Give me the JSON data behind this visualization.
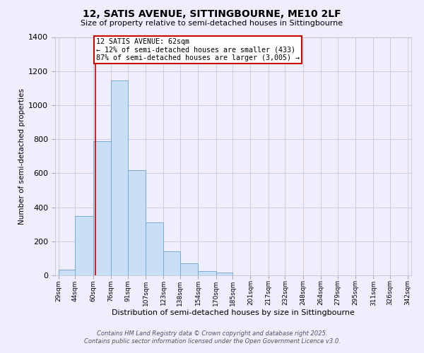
{
  "title": "12, SATIS AVENUE, SITTINGBOURNE, ME10 2LF",
  "subtitle": "Size of property relative to semi-detached houses in Sittingbourne",
  "xlabel": "Distribution of semi-detached houses by size in Sittingbourne",
  "ylabel": "Number of semi-detached properties",
  "bar_color": "#c9dff5",
  "bar_edge_color": "#7aaad0",
  "bins": [
    29,
    44,
    60,
    76,
    91,
    107,
    123,
    138,
    154,
    170,
    185,
    201,
    217,
    232,
    248,
    264,
    279,
    295,
    311,
    326,
    342
  ],
  "values": [
    35,
    350,
    790,
    1145,
    620,
    310,
    140,
    70,
    25,
    15,
    0,
    0,
    0,
    0,
    0,
    0,
    0,
    0,
    0,
    0
  ],
  "bin_labels": [
    "29sqm",
    "44sqm",
    "60sqm",
    "76sqm",
    "91sqm",
    "107sqm",
    "123sqm",
    "138sqm",
    "154sqm",
    "170sqm",
    "185sqm",
    "201sqm",
    "217sqm",
    "232sqm",
    "248sqm",
    "264sqm",
    "279sqm",
    "295sqm",
    "311sqm",
    "326sqm",
    "342sqm"
  ],
  "property_line_x": 62,
  "annotation_title": "12 SATIS AVENUE: 62sqm",
  "annotation_line1": "← 12% of semi-detached houses are smaller (433)",
  "annotation_line2": "87% of semi-detached houses are larger (3,005) →",
  "annotation_box_color": "#ffffff",
  "annotation_box_edge_color": "#cc0000",
  "vline_color": "#cc0000",
  "ylim": [
    0,
    1400
  ],
  "yticks": [
    0,
    200,
    400,
    600,
    800,
    1000,
    1200,
    1400
  ],
  "background_color": "#eeeeff",
  "grid_color": "#ccccdd",
  "footer_line1": "Contains HM Land Registry data © Crown copyright and database right 2025.",
  "footer_line2": "Contains public sector information licensed under the Open Government Licence v3.0."
}
